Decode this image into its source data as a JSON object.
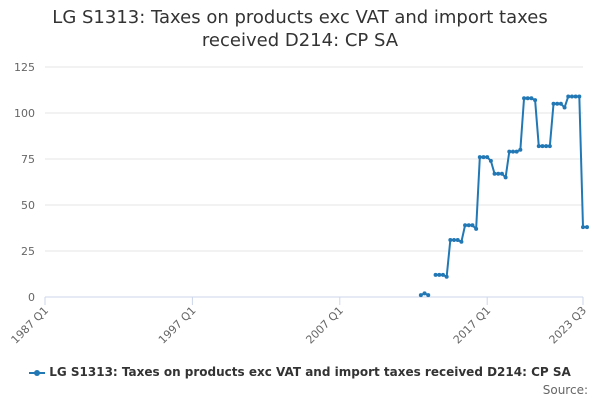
{
  "chart_data": {
    "type": "line",
    "title": "LG S1313: Taxes on products exc VAT and import taxes\nreceived D214: CP SA",
    "xlabel": "",
    "ylabel": "",
    "x_tick_labels": [
      "1987 Q1",
      "1997 Q1",
      "2007 Q1",
      "2017 Q1",
      "2023 Q3"
    ],
    "y_ticks": [
      0,
      25,
      50,
      75,
      100,
      125
    ],
    "ylim": [
      0,
      125
    ],
    "xlim": [
      "1987 Q1",
      "2023 Q3"
    ],
    "grid": "horizontal",
    "legend_position": "bottom",
    "series": [
      {
        "name": "LG S1313: Taxes on products exc VAT and import taxes received D214: CP SA",
        "color": "#2278b5",
        "segments": [
          {
            "x": [
              "2012 Q3",
              "2012 Q4",
              "2013 Q1"
            ],
            "y": [
              1,
              2,
              1
            ]
          },
          {
            "x": [
              "2013 Q3",
              "2013 Q4",
              "2014 Q1",
              "2014 Q2",
              "2014 Q3",
              "2014 Q4",
              "2015 Q1",
              "2015 Q2",
              "2015 Q3",
              "2015 Q4",
              "2016 Q1",
              "2016 Q2",
              "2016 Q3",
              "2016 Q4",
              "2017 Q1",
              "2017 Q2",
              "2017 Q3",
              "2017 Q4",
              "2018 Q1",
              "2018 Q2",
              "2018 Q3",
              "2018 Q4",
              "2019 Q1",
              "2019 Q2",
              "2019 Q3",
              "2019 Q4",
              "2020 Q1",
              "2020 Q2",
              "2020 Q3",
              "2020 Q4",
              "2021 Q1",
              "2021 Q2",
              "2021 Q3",
              "2021 Q4",
              "2022 Q1",
              "2022 Q2",
              "2022 Q3",
              "2022 Q4",
              "2023 Q1",
              "2023 Q2",
              "2023 Q3"
            ],
            "y": [
              12,
              12,
              12,
              11,
              31,
              31,
              31,
              30,
              39,
              39,
              39,
              37,
              76,
              76,
              76,
              74,
              67,
              67,
              67,
              65,
              79,
              79,
              79,
              80,
              108,
              108,
              108,
              107,
              82,
              82,
              82,
              82,
              105,
              105,
              105,
              103,
              109,
              109,
              109,
              109,
              38
            ]
          }
        ],
        "trailing_point": {
          "x": "2023 Q3",
          "y": 38
        }
      }
    ]
  },
  "legend": {
    "label": "LG S1313: Taxes on products exc VAT and import taxes received D214: CP SA"
  },
  "source": {
    "label": "Source:"
  }
}
